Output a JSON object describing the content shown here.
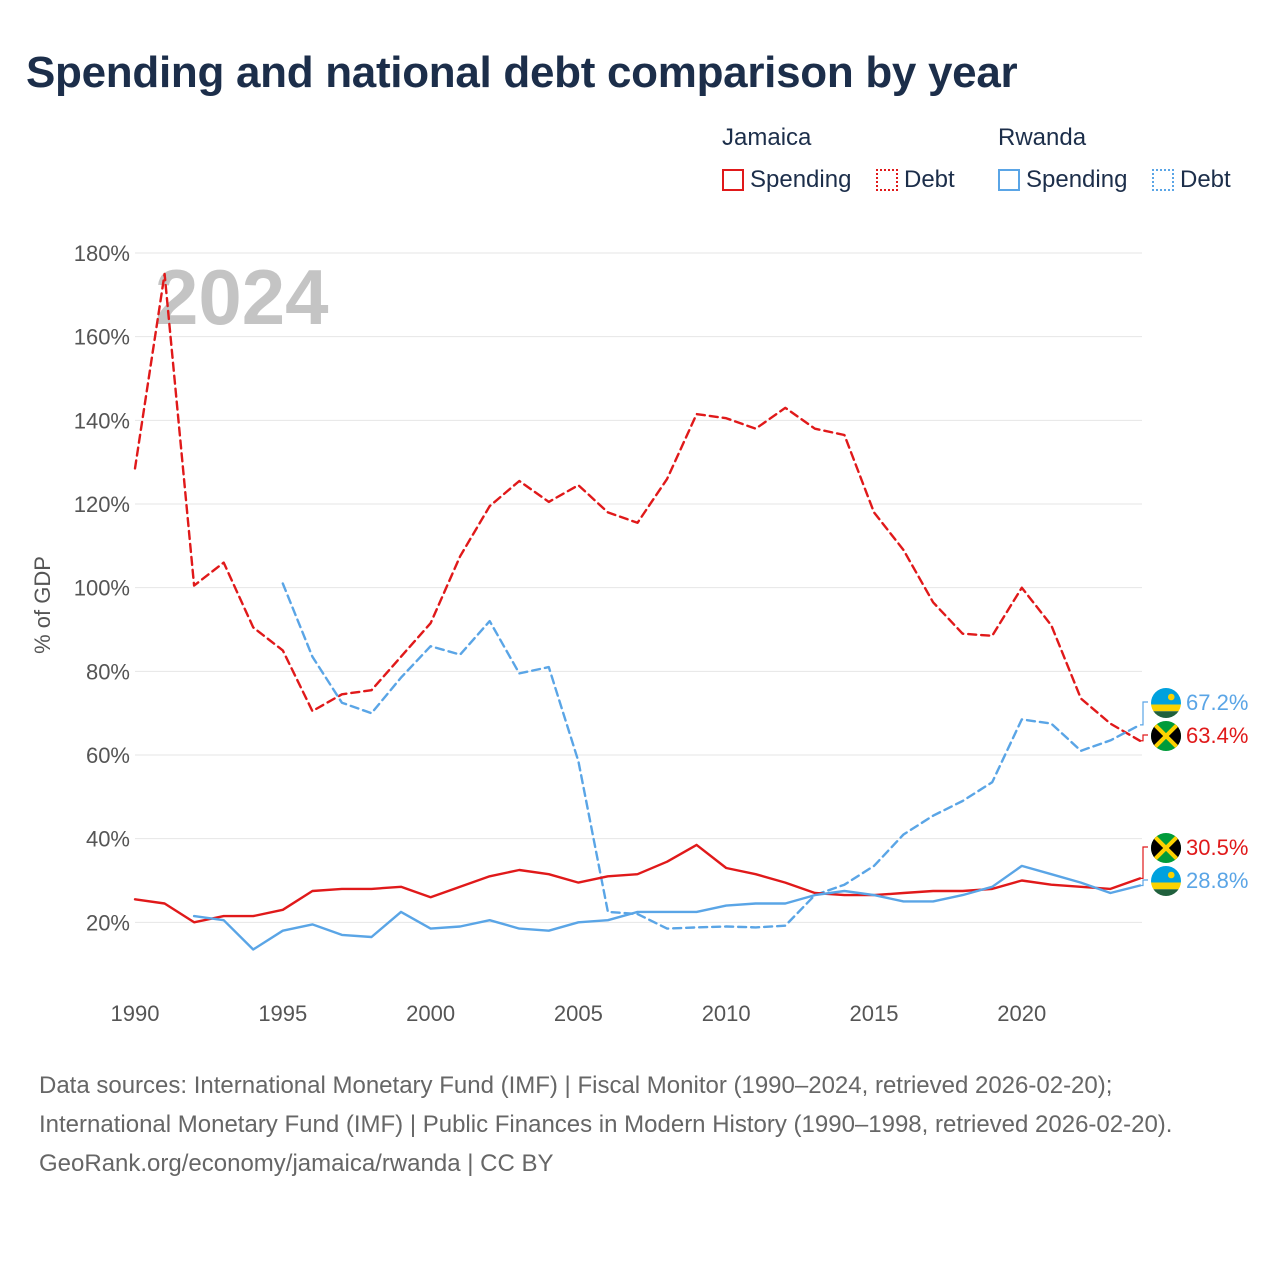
{
  "title": "Spending and national debt comparison by year",
  "legend": {
    "groups": [
      {
        "name": "Jamaica",
        "items": [
          {
            "label": "Spending"
          },
          {
            "label": "Debt"
          }
        ]
      },
      {
        "name": "Rwanda",
        "items": [
          {
            "label": "Spending"
          },
          {
            "label": "Debt"
          }
        ]
      }
    ]
  },
  "colors": {
    "jamaica": "#e0191a",
    "rwanda": "#5aa5e6",
    "grid": "#e6e6e6",
    "year_watermark": "#c4c4c4"
  },
  "chart_data": {
    "type": "line",
    "title": "Spending and national debt comparison by year",
    "xlabel": "",
    "ylabel": "% of GDP",
    "year_label": "2024",
    "xlim": [
      1990,
      2024
    ],
    "ylim": [
      0,
      180
    ],
    "x_ticks": [
      1990,
      1995,
      2000,
      2005,
      2010,
      2015,
      2020
    ],
    "y_ticks": [
      20,
      40,
      60,
      80,
      100,
      120,
      140,
      160,
      180
    ],
    "y_tick_labels": [
      "20%",
      "40%",
      "60%",
      "80%",
      "100%",
      "120%",
      "140%",
      "160%",
      "180%"
    ],
    "series": [
      {
        "name": "Jamaica Debt",
        "country": "Jamaica",
        "color": "#e0191a",
        "dash": "dashed",
        "x": [
          1990,
          1991,
          1992,
          1993,
          1994,
          1995,
          1996,
          1997,
          1998,
          1999,
          2000,
          2001,
          2002,
          2003,
          2004,
          2005,
          2006,
          2007,
          2008,
          2009,
          2010,
          2011,
          2012,
          2013,
          2014,
          2015,
          2016,
          2017,
          2018,
          2019,
          2020,
          2021,
          2022,
          2023,
          2024
        ],
        "values": [
          128.5,
          175.0,
          100.5,
          106.0,
          90.5,
          85.0,
          70.5,
          74.5,
          75.5,
          83.5,
          91.5,
          107.5,
          119.5,
          125.5,
          120.5,
          124.5,
          118.0,
          115.5,
          126.0,
          141.5,
          140.5,
          138.0,
          143.0,
          138.0,
          136.5,
          118.0,
          109.0,
          96.5,
          89.0,
          88.5,
          100.0,
          91.0,
          73.5,
          67.5,
          63.4
        ],
        "end_label": "63.4%"
      },
      {
        "name": "Rwanda Debt",
        "country": "Rwanda",
        "color": "#5aa5e6",
        "dash": "dashed",
        "x": [
          1995,
          1996,
          1997,
          1998,
          1999,
          2000,
          2001,
          2002,
          2003,
          2004,
          2005,
          2006,
          2007,
          2008,
          2009,
          2010,
          2011,
          2012,
          2013,
          2014,
          2015,
          2016,
          2017,
          2018,
          2019,
          2020,
          2021,
          2022,
          2023,
          2024
        ],
        "values": [
          101.0,
          83.5,
          72.5,
          70.0,
          78.5,
          86.0,
          84.0,
          92.0,
          79.5,
          81.0,
          58.5,
          22.5,
          22.0,
          18.5,
          18.8,
          19.0,
          18.8,
          19.2,
          26.5,
          29.0,
          33.5,
          41.0,
          45.5,
          49.0,
          53.5,
          68.5,
          67.5,
          61.0,
          63.5,
          67.2
        ],
        "end_label": "67.2%"
      },
      {
        "name": "Jamaica Spending",
        "country": "Jamaica",
        "color": "#e0191a",
        "dash": "solid",
        "x": [
          1990,
          1991,
          1992,
          1993,
          1994,
          1995,
          1996,
          1997,
          1998,
          1999,
          2000,
          2001,
          2002,
          2003,
          2004,
          2005,
          2006,
          2007,
          2008,
          2009,
          2010,
          2011,
          2012,
          2013,
          2014,
          2015,
          2016,
          2017,
          2018,
          2019,
          2020,
          2021,
          2022,
          2023,
          2024
        ],
        "values": [
          25.5,
          24.5,
          20.0,
          21.5,
          21.5,
          23.0,
          27.5,
          28.0,
          28.0,
          28.5,
          26.0,
          28.5,
          31.0,
          32.5,
          31.5,
          29.5,
          31.0,
          31.5,
          34.5,
          38.5,
          33.0,
          31.5,
          29.5,
          27.0,
          26.5,
          26.5,
          27.0,
          27.5,
          27.5,
          28.0,
          30.0,
          29.0,
          28.5,
          28.0,
          30.5
        ],
        "end_label": "30.5%"
      },
      {
        "name": "Rwanda Spending",
        "country": "Rwanda",
        "color": "#5aa5e6",
        "dash": "solid",
        "x": [
          1992,
          1993,
          1994,
          1995,
          1996,
          1997,
          1998,
          1999,
          2000,
          2001,
          2002,
          2003,
          2004,
          2005,
          2006,
          2007,
          2008,
          2009,
          2010,
          2011,
          2012,
          2013,
          2014,
          2015,
          2016,
          2017,
          2018,
          2019,
          2020,
          2021,
          2022,
          2023,
          2024
        ],
        "values": [
          21.5,
          20.5,
          13.5,
          18.0,
          19.5,
          17.0,
          16.5,
          22.5,
          18.5,
          19.0,
          20.5,
          18.5,
          18.0,
          20.0,
          20.5,
          22.5,
          22.5,
          22.5,
          24.0,
          24.5,
          24.5,
          26.5,
          27.5,
          26.5,
          25.0,
          25.0,
          26.5,
          28.5,
          33.5,
          31.5,
          29.5,
          27.0,
          28.8
        ],
        "end_label": "28.8%"
      }
    ]
  },
  "footer": {
    "sources": "Data sources: International Monetary Fund (IMF) | Fiscal Monitor (1990–2024, retrieved 2026-02-20); International Monetary Fund (IMF) | Public Finances in Modern History (1990–1998, retrieved 2026-02-20).",
    "attribution": "GeoRank.org/economy/jamaica/rwanda | CC BY"
  }
}
